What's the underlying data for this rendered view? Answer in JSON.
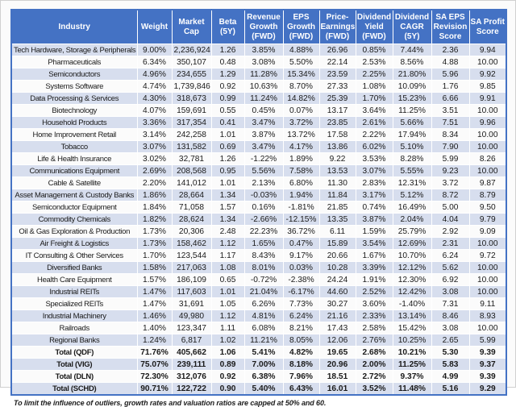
{
  "colors": {
    "header_bg": "#4472C4",
    "header_fg": "#FFFFFF",
    "band_bg": "#D7DEEE",
    "outer_border": "#4472C4"
  },
  "chart_data": {
    "type": "table",
    "columns": [
      "Industry",
      "Weight",
      "Market Cap",
      "Beta (5Y)",
      "Revenue Growth (FWD)",
      "EPS Growth (FWD)",
      "Price-Earnings (FWD)",
      "Dividend Yield (FWD)",
      "Dividend CAGR (5Y)",
      "SA EPS Revision Score",
      "SA Profit Score"
    ],
    "header_display": [
      "Industry",
      "Weight",
      "Market\nCap",
      "Beta (5Y)",
      "Revenue\nGrowth\n(FWD)",
      "EPS\nGrowth\n(FWD)",
      "Price-\nEarnings\n(FWD)",
      "Dividend\nYield\n(FWD)",
      "Dividend\nCAGR (5Y)",
      "SA EPS\nRevision\nScore",
      "SA Profit\nScore"
    ],
    "rows": [
      {
        "total": false,
        "cells": [
          "Tech Hardware, Storage & Peripherals",
          "9.00%",
          "2,236,924",
          "1.26",
          "3.85%",
          "4.88%",
          "26.96",
          "0.85%",
          "7.44%",
          "2.36",
          "9.94"
        ]
      },
      {
        "total": false,
        "cells": [
          "Pharmaceuticals",
          "6.34%",
          "350,107",
          "0.48",
          "3.08%",
          "5.50%",
          "22.14",
          "2.53%",
          "8.56%",
          "4.88",
          "10.00"
        ]
      },
      {
        "total": false,
        "cells": [
          "Semiconductors",
          "4.96%",
          "234,655",
          "1.29",
          "11.28%",
          "15.34%",
          "23.59",
          "2.25%",
          "21.80%",
          "5.96",
          "9.92"
        ]
      },
      {
        "total": false,
        "cells": [
          "Systems Software",
          "4.74%",
          "1,739,846",
          "0.92",
          "10.63%",
          "8.70%",
          "27.33",
          "1.08%",
          "10.09%",
          "1.76",
          "9.85"
        ]
      },
      {
        "total": false,
        "cells": [
          "Data Processing & Services",
          "4.30%",
          "318,673",
          "0.99",
          "11.24%",
          "14.82%",
          "25.39",
          "1.70%",
          "15.23%",
          "6.66",
          "9.91"
        ]
      },
      {
        "total": false,
        "cells": [
          "Biotechnology",
          "4.07%",
          "159,691",
          "0.55",
          "0.45%",
          "0.07%",
          "13.17",
          "3.64%",
          "11.25%",
          "3.51",
          "10.00"
        ]
      },
      {
        "total": false,
        "cells": [
          "Household Products",
          "3.36%",
          "317,354",
          "0.41",
          "3.47%",
          "3.72%",
          "23.85",
          "2.61%",
          "5.66%",
          "7.51",
          "9.96"
        ]
      },
      {
        "total": false,
        "cells": [
          "Home Improvement Retail",
          "3.14%",
          "242,258",
          "1.01",
          "3.87%",
          "13.72%",
          "17.58",
          "2.22%",
          "17.94%",
          "8.34",
          "10.00"
        ]
      },
      {
        "total": false,
        "cells": [
          "Tobacco",
          "3.07%",
          "131,582",
          "0.69",
          "3.47%",
          "4.17%",
          "13.86",
          "6.02%",
          "5.10%",
          "7.90",
          "10.00"
        ]
      },
      {
        "total": false,
        "cells": [
          "Life & Health Insurance",
          "3.02%",
          "32,781",
          "1.26",
          "-1.22%",
          "1.89%",
          "9.22",
          "3.53%",
          "8.28%",
          "5.99",
          "8.26"
        ]
      },
      {
        "total": false,
        "cells": [
          "Communications Equipment",
          "2.69%",
          "208,568",
          "0.95",
          "5.56%",
          "7.58%",
          "13.53",
          "3.07%",
          "5.55%",
          "9.23",
          "10.00"
        ]
      },
      {
        "total": false,
        "cells": [
          "Cable & Satellite",
          "2.20%",
          "141,012",
          "1.01",
          "2.13%",
          "6.80%",
          "11.30",
          "2.83%",
          "12.31%",
          "3.72",
          "9.87"
        ]
      },
      {
        "total": false,
        "cells": [
          "Asset Management & Custody Banks",
          "1.86%",
          "28,664",
          "1.34",
          "-0.03%",
          "1.94%",
          "11.84",
          "3.17%",
          "5.12%",
          "8.72",
          "8.79"
        ]
      },
      {
        "total": false,
        "cells": [
          "Semiconductor Equipment",
          "1.84%",
          "71,058",
          "1.57",
          "0.16%",
          "-1.81%",
          "21.85",
          "0.74%",
          "16.49%",
          "5.00",
          "9.50"
        ]
      },
      {
        "total": false,
        "cells": [
          "Commodity Chemicals",
          "1.82%",
          "28,624",
          "1.34",
          "-2.66%",
          "-12.15%",
          "13.35",
          "3.87%",
          "2.04%",
          "4.04",
          "9.79"
        ]
      },
      {
        "total": false,
        "cells": [
          "Oil & Gas Exploration & Production",
          "1.73%",
          "20,306",
          "2.48",
          "22.23%",
          "36.72%",
          "6.11",
          "1.59%",
          "25.79%",
          "2.92",
          "9.09"
        ]
      },
      {
        "total": false,
        "cells": [
          "Air Freight & Logistics",
          "1.73%",
          "158,462",
          "1.12",
          "1.65%",
          "0.47%",
          "15.89",
          "3.54%",
          "12.69%",
          "2.31",
          "10.00"
        ]
      },
      {
        "total": false,
        "cells": [
          "IT Consulting & Other Services",
          "1.70%",
          "123,544",
          "1.17",
          "8.43%",
          "9.17%",
          "20.66",
          "1.67%",
          "10.70%",
          "6.24",
          "9.72"
        ]
      },
      {
        "total": false,
        "cells": [
          "Diversified Banks",
          "1.58%",
          "217,063",
          "1.08",
          "8.01%",
          "0.03%",
          "10.28",
          "3.39%",
          "12.12%",
          "5.62",
          "10.00"
        ]
      },
      {
        "total": false,
        "cells": [
          "Health Care Equipment",
          "1.57%",
          "186,109",
          "0.65",
          "-0.72%",
          "-2.38%",
          "24.24",
          "1.91%",
          "12.30%",
          "6.92",
          "10.00"
        ]
      },
      {
        "total": false,
        "cells": [
          "Industrial REITs",
          "1.47%",
          "117,603",
          "1.01",
          "21.04%",
          "-6.17%",
          "44.60",
          "2.52%",
          "12.42%",
          "3.08",
          "10.00"
        ]
      },
      {
        "total": false,
        "cells": [
          "Specialized REITs",
          "1.47%",
          "31,691",
          "1.05",
          "6.26%",
          "7.73%",
          "30.27",
          "3.60%",
          "-1.40%",
          "7.31",
          "9.11"
        ]
      },
      {
        "total": false,
        "cells": [
          "Industrial Machinery",
          "1.46%",
          "49,980",
          "1.12",
          "4.81%",
          "6.24%",
          "21.16",
          "2.33%",
          "13.14%",
          "8.46",
          "8.93"
        ]
      },
      {
        "total": false,
        "cells": [
          "Railroads",
          "1.40%",
          "123,347",
          "1.11",
          "6.08%",
          "8.21%",
          "17.43",
          "2.58%",
          "15.42%",
          "3.08",
          "10.00"
        ]
      },
      {
        "total": false,
        "cells": [
          "Regional Banks",
          "1.24%",
          "6,817",
          "1.02",
          "11.21%",
          "8.05%",
          "12.06",
          "2.76%",
          "10.25%",
          "2.65",
          "5.99"
        ]
      },
      {
        "total": true,
        "cells": [
          "Total (QDF)",
          "71.76%",
          "405,662",
          "1.06",
          "5.41%",
          "4.82%",
          "19.65",
          "2.68%",
          "10.21%",
          "5.30",
          "9.39"
        ]
      },
      {
        "total": true,
        "cells": [
          "Total (VIG)",
          "75.07%",
          "239,111",
          "0.89",
          "7.00%",
          "8.18%",
          "20.96",
          "2.00%",
          "11.25%",
          "5.83",
          "9.37"
        ]
      },
      {
        "total": true,
        "cells": [
          "Total (DLN)",
          "72.30%",
          "312,076",
          "0.92",
          "6.38%",
          "7.96%",
          "18.51",
          "2.72%",
          "9.37%",
          "4.99",
          "9.39"
        ]
      },
      {
        "total": true,
        "cells": [
          "Total (SCHD)",
          "90.71%",
          "122,722",
          "0.90",
          "5.40%",
          "6.43%",
          "16.01",
          "3.52%",
          "11.48%",
          "5.16",
          "9.29"
        ]
      }
    ],
    "footnote": "To limit the influence of outliers, growth rates and valuation ratios are capped at 50% and 60."
  }
}
